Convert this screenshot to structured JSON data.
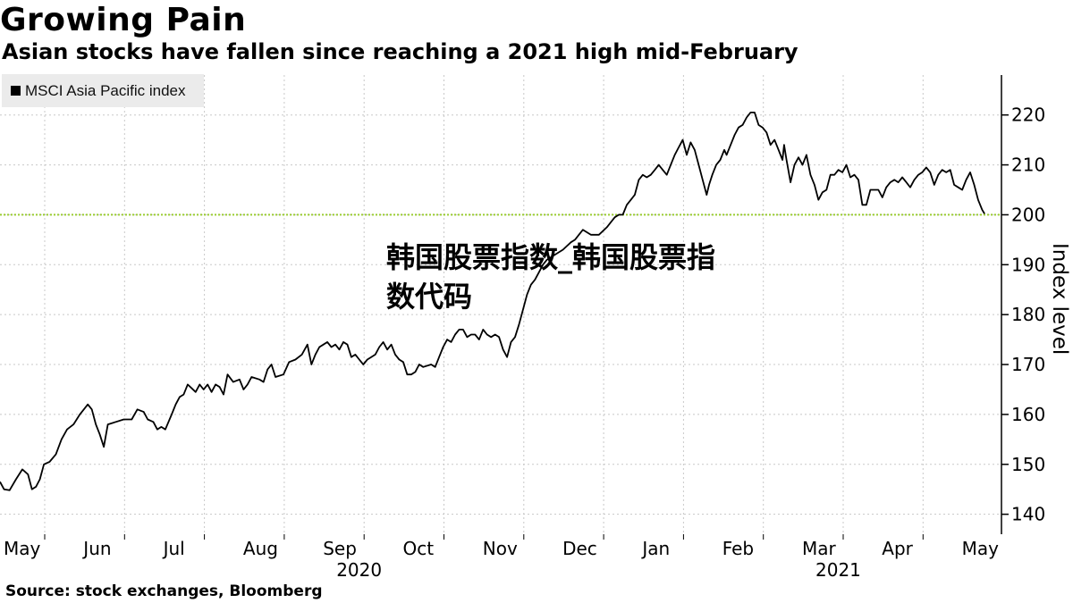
{
  "title": "Growing Pain",
  "subtitle": "Asian stocks have fallen since reaching a 2021 high mid-February",
  "source": "Source: stock exchanges, Bloomberg",
  "overlay_text": "韩国股票指数_韩国股票指数代码",
  "colors": {
    "line": "#000000",
    "reference": "#9acd32",
    "grid": "#c8c8c8",
    "legend_bg": "#ebebeb"
  },
  "chart_data": {
    "type": "line",
    "legend": [
      {
        "label": "MSCI Asia Pacific index",
        "color": "#000000"
      }
    ],
    "ylabel": "Index level",
    "ylim": [
      136,
      228
    ],
    "yticks": [
      140,
      150,
      160,
      170,
      180,
      190,
      200,
      210,
      220
    ],
    "y_axis_side": "right",
    "reference_line": 200,
    "months": [
      "May",
      "Jun",
      "Jul",
      "Aug",
      "Sep",
      "Oct",
      "Nov",
      "Dec",
      "Jan",
      "Feb",
      "Mar",
      "Apr",
      "May"
    ],
    "years": [
      {
        "label": "2020",
        "month_index": 4
      },
      {
        "label": "2021",
        "month_index": 10
      }
    ],
    "xlim": [
      0,
      12.4
    ],
    "series": [
      {
        "name": "MSCI Asia Pacific index",
        "points": [
          [
            0.0,
            146.5
          ],
          [
            0.05,
            145.0
          ],
          [
            0.12,
            144.8
          ],
          [
            0.2,
            147.0
          ],
          [
            0.28,
            149.0
          ],
          [
            0.35,
            148.0
          ],
          [
            0.4,
            145.0
          ],
          [
            0.45,
            145.5
          ],
          [
            0.5,
            147.0
          ],
          [
            0.55,
            150.0
          ],
          [
            0.62,
            150.5
          ],
          [
            0.7,
            152.0
          ],
          [
            0.77,
            155.0
          ],
          [
            0.84,
            157.0
          ],
          [
            0.92,
            158.0
          ],
          [
            1.0,
            160.0
          ],
          [
            1.1,
            162.0
          ],
          [
            1.15,
            161.0
          ],
          [
            1.2,
            158.0
          ],
          [
            1.25,
            156.0
          ],
          [
            1.3,
            153.5
          ],
          [
            1.35,
            158.0
          ],
          [
            1.45,
            158.5
          ],
          [
            1.55,
            159.0
          ],
          [
            1.65,
            159.0
          ],
          [
            1.72,
            161.0
          ],
          [
            1.8,
            160.5
          ],
          [
            1.85,
            159.0
          ],
          [
            1.92,
            158.5
          ],
          [
            1.97,
            157.0
          ],
          [
            2.02,
            157.5
          ],
          [
            2.07,
            157.0
          ],
          [
            2.15,
            160.0
          ],
          [
            2.2,
            162.0
          ],
          [
            2.25,
            163.5
          ],
          [
            2.3,
            164.0
          ],
          [
            2.35,
            166.0
          ],
          [
            2.45,
            164.5
          ],
          [
            2.5,
            166.0
          ],
          [
            2.55,
            165.0
          ],
          [
            2.6,
            166.0
          ],
          [
            2.65,
            164.5
          ],
          [
            2.7,
            166.0
          ],
          [
            2.75,
            165.5
          ],
          [
            2.8,
            164.0
          ],
          [
            2.85,
            168.0
          ],
          [
            2.92,
            166.5
          ],
          [
            3.0,
            167.0
          ],
          [
            3.05,
            165.0
          ],
          [
            3.1,
            166.0
          ],
          [
            3.15,
            167.5
          ],
          [
            3.25,
            167.0
          ],
          [
            3.3,
            166.5
          ],
          [
            3.35,
            169.0
          ],
          [
            3.4,
            170.0
          ],
          [
            3.45,
            167.5
          ],
          [
            3.55,
            168.0
          ],
          [
            3.62,
            170.5
          ],
          [
            3.7,
            171.0
          ],
          [
            3.78,
            172.0
          ],
          [
            3.85,
            174.0
          ],
          [
            3.9,
            170.0
          ],
          [
            3.95,
            172.0
          ],
          [
            4.0,
            173.5
          ],
          [
            4.05,
            174.0
          ],
          [
            4.1,
            174.5
          ],
          [
            4.15,
            173.5
          ],
          [
            4.2,
            174.0
          ],
          [
            4.25,
            173.0
          ],
          [
            4.3,
            174.5
          ],
          [
            4.35,
            174.0
          ],
          [
            4.4,
            171.5
          ],
          [
            4.45,
            172.0
          ],
          [
            4.5,
            171.0
          ],
          [
            4.55,
            170.0
          ],
          [
            4.6,
            171.0
          ],
          [
            4.65,
            171.5
          ],
          [
            4.7,
            172.0
          ],
          [
            4.75,
            173.5
          ],
          [
            4.8,
            174.5
          ],
          [
            4.85,
            173.0
          ],
          [
            4.9,
            174.0
          ],
          [
            4.95,
            172.0
          ],
          [
            5.0,
            171.0
          ],
          [
            5.05,
            170.5
          ],
          [
            5.1,
            168.0
          ],
          [
            5.15,
            168.0
          ],
          [
            5.2,
            168.5
          ],
          [
            5.25,
            170.0
          ],
          [
            5.3,
            169.5
          ],
          [
            5.4,
            170.0
          ],
          [
            5.45,
            169.5
          ],
          [
            5.5,
            171.5
          ],
          [
            5.55,
            173.5
          ],
          [
            5.6,
            175.0
          ],
          [
            5.65,
            174.5
          ],
          [
            5.7,
            176.0
          ],
          [
            5.75,
            177.0
          ],
          [
            5.8,
            177.0
          ],
          [
            5.85,
            175.5
          ],
          [
            5.9,
            176.0
          ],
          [
            5.95,
            176.0
          ],
          [
            6.0,
            175.0
          ],
          [
            6.05,
            177.0
          ],
          [
            6.1,
            176.0
          ],
          [
            6.15,
            175.5
          ],
          [
            6.2,
            176.0
          ],
          [
            6.25,
            175.5
          ],
          [
            6.3,
            173.0
          ],
          [
            6.35,
            171.5
          ],
          [
            6.4,
            174.5
          ],
          [
            6.45,
            175.5
          ],
          [
            6.5,
            178.0
          ],
          [
            6.55,
            181.0
          ],
          [
            6.6,
            184.0
          ],
          [
            6.65,
            186.0
          ],
          [
            6.7,
            187.0
          ],
          [
            6.75,
            188.5
          ],
          [
            6.8,
            190.0
          ],
          [
            6.85,
            191.0
          ],
          [
            6.95,
            192.0
          ],
          [
            7.05,
            193.0
          ],
          [
            7.15,
            194.5
          ],
          [
            7.2,
            195.0
          ],
          [
            7.25,
            196.0
          ],
          [
            7.3,
            197.0
          ],
          [
            7.4,
            196.0
          ],
          [
            7.5,
            196.0
          ],
          [
            7.6,
            197.5
          ],
          [
            7.65,
            198.5
          ],
          [
            7.7,
            199.5
          ],
          [
            7.75,
            200.0
          ],
          [
            7.8,
            200.0
          ],
          [
            7.85,
            202.0
          ],
          [
            7.9,
            203.0
          ],
          [
            7.95,
            204.0
          ],
          [
            8.0,
            207.0
          ],
          [
            8.05,
            208.0
          ],
          [
            8.1,
            207.5
          ],
          [
            8.15,
            208.0
          ],
          [
            8.2,
            209.0
          ],
          [
            8.25,
            210.0
          ],
          [
            8.3,
            209.0
          ],
          [
            8.35,
            208.0
          ],
          [
            8.4,
            210.0
          ],
          [
            8.45,
            212.0
          ],
          [
            8.5,
            213.5
          ],
          [
            8.55,
            215.0
          ],
          [
            8.6,
            212.0
          ],
          [
            8.65,
            214.5
          ],
          [
            8.7,
            213.0
          ],
          [
            8.75,
            210.0
          ],
          [
            8.8,
            207.0
          ],
          [
            8.85,
            204.0
          ],
          [
            8.88,
            206.0
          ],
          [
            8.92,
            208.0
          ],
          [
            8.97,
            210.0
          ],
          [
            9.02,
            211.0
          ],
          [
            9.07,
            213.0
          ],
          [
            9.1,
            212.0
          ],
          [
            9.15,
            214.0
          ],
          [
            9.2,
            216.0
          ],
          [
            9.25,
            217.5
          ],
          [
            9.3,
            218.0
          ],
          [
            9.35,
            219.5
          ],
          [
            9.4,
            220.5
          ],
          [
            9.45,
            220.5
          ],
          [
            9.5,
            218.0
          ],
          [
            9.55,
            217.5
          ],
          [
            9.6,
            216.5
          ],
          [
            9.65,
            214.0
          ],
          [
            9.7,
            215.0
          ],
          [
            9.75,
            213.0
          ],
          [
            9.8,
            211.0
          ],
          [
            9.82,
            214.0
          ],
          [
            9.85,
            211.0
          ],
          [
            9.9,
            206.5
          ],
          [
            9.95,
            210.0
          ],
          [
            10.0,
            211.5
          ],
          [
            10.05,
            210.0
          ],
          [
            10.1,
            212.0
          ],
          [
            10.15,
            208.0
          ],
          [
            10.2,
            206.0
          ],
          [
            10.25,
            203.0
          ],
          [
            10.3,
            204.5
          ],
          [
            10.35,
            205.0
          ],
          [
            10.4,
            208.0
          ],
          [
            10.45,
            208.0
          ],
          [
            10.5,
            209.0
          ],
          [
            10.55,
            208.5
          ],
          [
            10.6,
            210.0
          ],
          [
            10.65,
            207.5
          ],
          [
            10.7,
            208.0
          ],
          [
            10.75,
            207.0
          ],
          [
            10.8,
            202.0
          ],
          [
            10.85,
            202.0
          ],
          [
            10.9,
            205.0
          ],
          [
            10.95,
            205.0
          ],
          [
            11.0,
            205.0
          ],
          [
            11.05,
            203.5
          ],
          [
            11.1,
            205.5
          ],
          [
            11.15,
            206.5
          ],
          [
            11.2,
            207.0
          ],
          [
            11.25,
            206.5
          ],
          [
            11.3,
            207.5
          ],
          [
            11.35,
            206.5
          ],
          [
            11.4,
            205.5
          ],
          [
            11.45,
            207.0
          ],
          [
            11.5,
            208.0
          ],
          [
            11.55,
            208.5
          ],
          [
            11.6,
            209.5
          ],
          [
            11.65,
            208.5
          ],
          [
            11.7,
            206.0
          ],
          [
            11.75,
            208.0
          ],
          [
            11.8,
            209.0
          ],
          [
            11.85,
            208.5
          ],
          [
            11.9,
            209.0
          ],
          [
            11.95,
            206.0
          ],
          [
            12.0,
            205.5
          ],
          [
            12.05,
            205.0
          ],
          [
            12.1,
            207.0
          ],
          [
            12.15,
            208.5
          ],
          [
            12.2,
            206.0
          ],
          [
            12.25,
            203.0
          ],
          [
            12.3,
            201.0
          ],
          [
            12.33,
            200.2
          ]
        ]
      }
    ]
  }
}
